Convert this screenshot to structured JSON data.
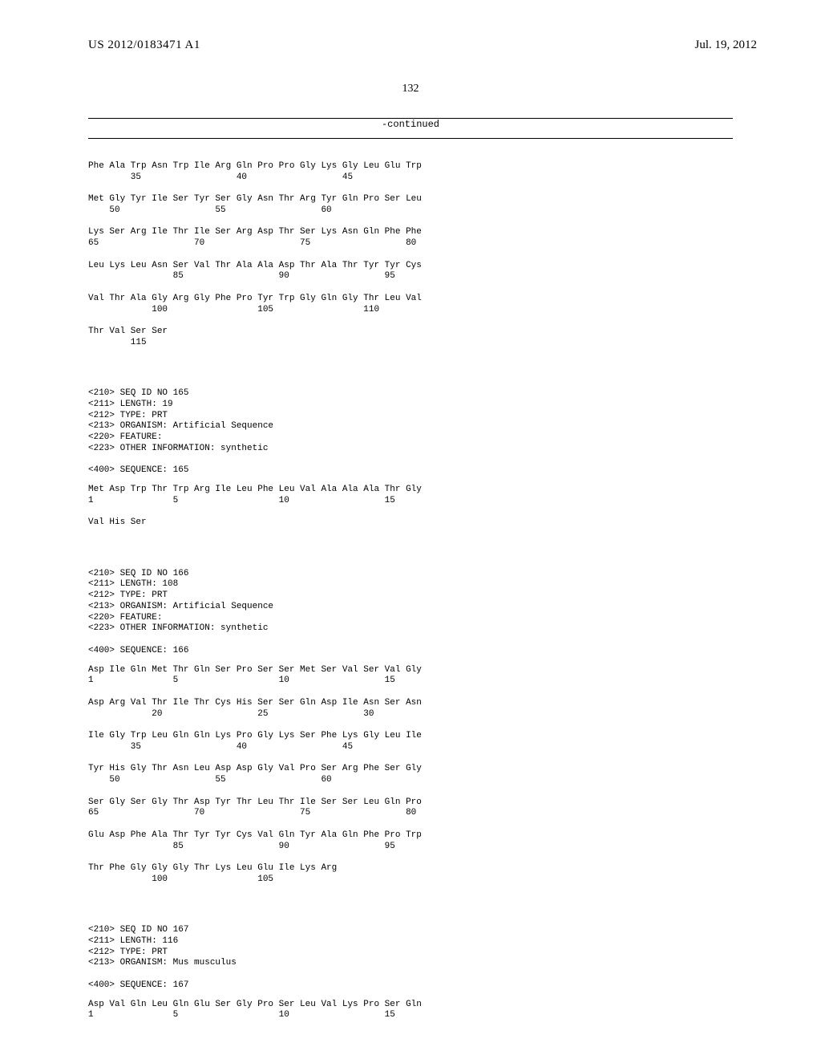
{
  "header": {
    "publication_number": "US 2012/0183471 A1",
    "publication_date": "Jul. 19, 2012"
  },
  "page_number": "132",
  "continued_label": "-continued",
  "sequences": [
    {
      "rows": [
        {
          "aa": "Phe Ala Trp Asn Trp Ile Arg Gln Pro Pro Gly Lys Gly Leu Glu Trp",
          "nums": "        35                  40                  45"
        },
        {
          "aa": "Met Gly Tyr Ile Ser Tyr Ser Gly Asn Thr Arg Tyr Gln Pro Ser Leu",
          "nums": "    50                  55                  60"
        },
        {
          "aa": "Lys Ser Arg Ile Thr Ile Ser Arg Asp Thr Ser Lys Asn Gln Phe Phe",
          "nums": "65                  70                  75                  80"
        },
        {
          "aa": "Leu Lys Leu Asn Ser Val Thr Ala Ala Asp Thr Ala Thr Tyr Tyr Cys",
          "nums": "                85                  90                  95"
        },
        {
          "aa": "Val Thr Ala Gly Arg Gly Phe Pro Tyr Trp Gly Gln Gly Thr Leu Val",
          "nums": "            100                 105                 110"
        },
        {
          "aa": "Thr Val Ser Ser",
          "nums": "        115"
        }
      ]
    }
  ],
  "meta165": {
    "lines": [
      "<210> SEQ ID NO 165",
      "<211> LENGTH: 19",
      "<212> TYPE: PRT",
      "<213> ORGANISM: Artificial Sequence",
      "<220> FEATURE:",
      "<223> OTHER INFORMATION: synthetic"
    ],
    "seq_label": "<400> SEQUENCE: 165",
    "rows": [
      {
        "aa": "Met Asp Trp Thr Trp Arg Ile Leu Phe Leu Val Ala Ala Ala Thr Gly",
        "nums": "1               5                   10                  15"
      },
      {
        "aa": "Val His Ser",
        "nums": ""
      }
    ]
  },
  "meta166": {
    "lines": [
      "<210> SEQ ID NO 166",
      "<211> LENGTH: 108",
      "<212> TYPE: PRT",
      "<213> ORGANISM: Artificial Sequence",
      "<220> FEATURE:",
      "<223> OTHER INFORMATION: synthetic"
    ],
    "seq_label": "<400> SEQUENCE: 166",
    "rows": [
      {
        "aa": "Asp Ile Gln Met Thr Gln Ser Pro Ser Ser Met Ser Val Ser Val Gly",
        "nums": "1               5                   10                  15"
      },
      {
        "aa": "Asp Arg Val Thr Ile Thr Cys His Ser Ser Gln Asp Ile Asn Ser Asn",
        "nums": "            20                  25                  30"
      },
      {
        "aa": "Ile Gly Trp Leu Gln Gln Lys Pro Gly Lys Ser Phe Lys Gly Leu Ile",
        "nums": "        35                  40                  45"
      },
      {
        "aa": "Tyr His Gly Thr Asn Leu Asp Asp Gly Val Pro Ser Arg Phe Ser Gly",
        "nums": "    50                  55                  60"
      },
      {
        "aa": "Ser Gly Ser Gly Thr Asp Tyr Thr Leu Thr Ile Ser Ser Leu Gln Pro",
        "nums": "65                  70                  75                  80"
      },
      {
        "aa": "Glu Asp Phe Ala Thr Tyr Tyr Cys Val Gln Tyr Ala Gln Phe Pro Trp",
        "nums": "                85                  90                  95"
      },
      {
        "aa": "Thr Phe Gly Gly Gly Thr Lys Leu Glu Ile Lys Arg",
        "nums": "            100                 105"
      }
    ]
  },
  "meta167": {
    "lines": [
      "<210> SEQ ID NO 167",
      "<211> LENGTH: 116",
      "<212> TYPE: PRT",
      "<213> ORGANISM: Mus musculus"
    ],
    "seq_label": "<400> SEQUENCE: 167",
    "rows": [
      {
        "aa": "Asp Val Gln Leu Gln Glu Ser Gly Pro Ser Leu Val Lys Pro Ser Gln",
        "nums": "1               5                   10                  15"
      }
    ]
  }
}
